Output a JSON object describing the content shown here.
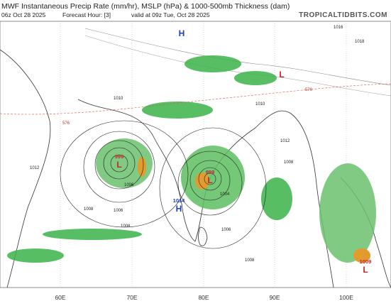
{
  "header": {
    "title": "MWF Instantaneous Precip Rate (mm/hr), MSLP (hPa) & 1000-500mb Thickness (dam)",
    "init": "06z Oct 28 2025",
    "forecast_hour": "Forecast Hour: [3]",
    "valid": "valid at 09z Tue, Oct 28 2025",
    "watermark": "TROPICALTIDBITS.COM"
  },
  "axis": {
    "longitude_labels": [
      "60E",
      "70E",
      "80E",
      "90E",
      "100E"
    ]
  },
  "pressure_centers": [
    {
      "value": "999",
      "letter": "L"
    },
    {
      "value": "999",
      "letter": "L"
    },
    {
      "value": "1014",
      "letter": "H"
    },
    {
      "value": "1009",
      "letter": "L"
    },
    {
      "letter": "L"
    },
    {
      "letter": "H"
    }
  ],
  "isobar_labels": [
    "1008",
    "1008",
    "1006",
    "1006",
    "1008",
    "1010",
    "1010",
    "1012",
    "1012",
    "1016",
    "1018",
    "1008",
    "1004",
    "1006"
  ],
  "thickness_labels": [
    "576",
    "576"
  ]
}
